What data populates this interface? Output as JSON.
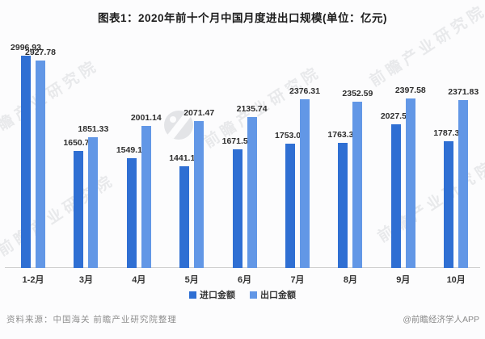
{
  "title": "图表1：2020年前十个月中国月度进出口规模(单位：亿元)",
  "chart_data": {
    "type": "bar",
    "title": "图表1：2020年前十个月中国月度进出口规模(单位：亿元)",
    "unit": "亿元",
    "categories": [
      "1-2月",
      "3月",
      "4月",
      "5月",
      "6月",
      "7月",
      "8月",
      "9月",
      "10月"
    ],
    "series": [
      {
        "name": "进口金额",
        "color": "#2F6FD3",
        "values": [
          2996.93,
          1650.74,
          1549.12,
          1441.15,
          1671.53,
          1753.02,
          1763.34,
          2027.59,
          1787.39
        ]
      },
      {
        "name": "出口金额",
        "color": "#6297E6",
        "values": [
          2927.78,
          1851.33,
          2001.14,
          2071.47,
          2135.74,
          2376.31,
          2352.59,
          2397.58,
          2371.83
        ]
      }
    ],
    "ylim": [
      0,
      3000
    ],
    "grid": false,
    "value_labels": true,
    "legend_position": "bottom",
    "value_label_color": "#2e2e2e",
    "axis_line_color": "#cfcfcf"
  },
  "legend": {
    "items": [
      {
        "label": "进口金额",
        "color": "#2F6FD3"
      },
      {
        "label": "出口金额",
        "color": "#6297E6"
      }
    ]
  },
  "footer": {
    "source": "资料来源：中国海关 前瞻产业研究院整理",
    "credit": "@前瞻经济学人APP"
  },
  "watermark": {
    "brand_text": "前瞻产业研究院"
  }
}
